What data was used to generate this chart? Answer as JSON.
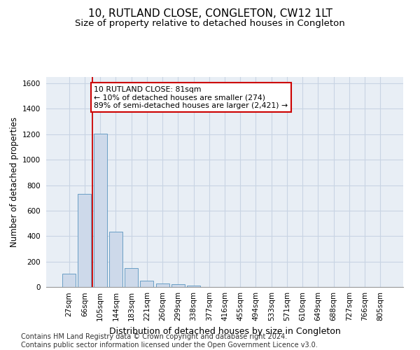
{
  "title": "10, RUTLAND CLOSE, CONGLETON, CW12 1LT",
  "subtitle": "Size of property relative to detached houses in Congleton",
  "xlabel": "Distribution of detached houses by size in Congleton",
  "ylabel": "Number of detached properties",
  "bar_color": "#cdd9ea",
  "bar_edge_color": "#6a9ec5",
  "grid_color": "#c8d4e3",
  "background_color": "#e8eef5",
  "categories": [
    "27sqm",
    "66sqm",
    "105sqm",
    "144sqm",
    "183sqm",
    "221sqm",
    "260sqm",
    "299sqm",
    "338sqm",
    "377sqm",
    "416sqm",
    "455sqm",
    "494sqm",
    "533sqm",
    "571sqm",
    "610sqm",
    "649sqm",
    "688sqm",
    "727sqm",
    "766sqm",
    "805sqm"
  ],
  "values": [
    107,
    730,
    1205,
    435,
    147,
    50,
    30,
    20,
    10,
    0,
    0,
    0,
    0,
    0,
    0,
    0,
    0,
    0,
    0,
    0,
    0
  ],
  "ylim": [
    0,
    1650
  ],
  "yticks": [
    0,
    200,
    400,
    600,
    800,
    1000,
    1200,
    1400,
    1600
  ],
  "property_line_x": 1.5,
  "annotation_text": "10 RUTLAND CLOSE: 81sqm\n← 10% of detached houses are smaller (274)\n89% of semi-detached houses are larger (2,421) →",
  "annotation_box_color": "#ffffff",
  "annotation_box_edge_color": "#cc0000",
  "footer_text": "Contains HM Land Registry data © Crown copyright and database right 2024.\nContains public sector information licensed under the Open Government Licence v3.0.",
  "red_line_color": "#cc0000",
  "title_fontsize": 11,
  "subtitle_fontsize": 9.5,
  "xlabel_fontsize": 9,
  "ylabel_fontsize": 8.5,
  "tick_fontsize": 7.5,
  "footer_fontsize": 7,
  "annot_fontsize": 7.8
}
